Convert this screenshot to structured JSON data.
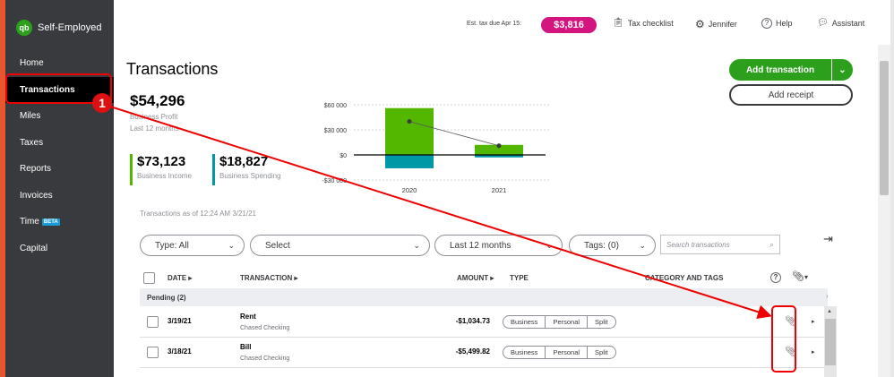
{
  "app": {
    "name": "Self-Employed",
    "logo_text": "qb"
  },
  "sidebar": {
    "items": [
      {
        "label": "Home"
      },
      {
        "label": "Transactions"
      },
      {
        "label": "Miles"
      },
      {
        "label": "Taxes"
      },
      {
        "label": "Reports"
      },
      {
        "label": "Invoices"
      },
      {
        "label": "Time",
        "badge": "BETA"
      },
      {
        "label": "Capital"
      }
    ]
  },
  "topbar": {
    "tax_label": "Est. tax due Apr 15:",
    "tax_amount": "$3,816",
    "checklist": "Tax checklist",
    "user": "Jennifer",
    "help": "Help",
    "assistant": "Assistant"
  },
  "header": {
    "title": "Transactions",
    "add_transaction": "Add transaction",
    "add_receipt": "Add receipt"
  },
  "summary": {
    "profit_value": "$54,296",
    "profit_label": "Business Profit",
    "profit_period": "Last 12 months",
    "income_value": "$73,123",
    "income_label": "Business Income",
    "spending_value": "$18,827",
    "spending_label": "Business Spending"
  },
  "chart_data": {
    "type": "bar",
    "categories": [
      "2020",
      "2021"
    ],
    "series": [
      {
        "values": [
          56000,
          12000
        ],
        "color": "#53b700"
      },
      {
        "values": [
          -16000,
          -3000
        ],
        "color": "#0097a7"
      }
    ],
    "line": [
      40000,
      11000
    ],
    "ticks": [
      "$60 000",
      "$30 000",
      "$0",
      "-$30 000"
    ],
    "ylim": [
      -30000,
      60000
    ]
  },
  "filters": {
    "as_of": "Transactions as of 12:24 AM 3/21/21",
    "type": "Type: All",
    "select": "Select",
    "period": "Last 12 months",
    "tags": "Tags: (0)",
    "search_placeholder": "Search transactions"
  },
  "table": {
    "headers": {
      "date": "DATE",
      "transaction": "TRANSACTION",
      "amount": "AMOUNT",
      "type": "TYPE",
      "category": "CATEGORY AND TAGS"
    },
    "pending_label": "Pending (2)",
    "type_options": [
      "Business",
      "Personal",
      "Split"
    ],
    "rows": [
      {
        "date": "3/19/21",
        "name": "Rent",
        "account": "Chased Checking",
        "amount": "-$1,034.73"
      },
      {
        "date": "3/18/21",
        "name": "Bill",
        "account": "Chased Checking",
        "amount": "-$5,499.82"
      }
    ]
  },
  "annotation": {
    "step": "1",
    "color": "#e00000"
  }
}
